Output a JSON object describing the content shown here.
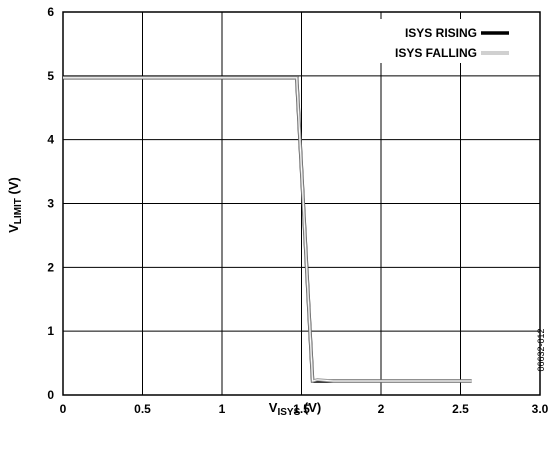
{
  "chart_data": {
    "type": "line",
    "xlim": [
      0,
      3.0
    ],
    "ylim": [
      0,
      6
    ],
    "x_ticks": [
      0,
      0.5,
      1,
      1.5,
      2,
      2.5,
      3.0
    ],
    "x_tick_labels": [
      "0",
      "0.5",
      "1",
      "1.5",
      "2",
      "2.5",
      "3.0"
    ],
    "y_ticks": [
      0,
      1,
      2,
      3,
      4,
      5,
      6
    ],
    "y_tick_labels": [
      "0",
      "1",
      "2",
      "3",
      "4",
      "5",
      "6"
    ],
    "grid": true,
    "xlabel": {
      "main": "V",
      "sub": "ISYS",
      "unit": " (V)"
    },
    "ylabel": {
      "main": "V",
      "sub": "LIMIT",
      "unit": " (V)"
    },
    "legend_position": "top-right",
    "series": [
      {
        "name": "ISYS RISING",
        "color": "#000000",
        "x": [
          0,
          1.47,
          1.57,
          2.57
        ],
        "y": [
          4.97,
          4.97,
          0.22,
          0.22
        ]
      },
      {
        "name": "ISYS FALLING",
        "color": "#a0a0a0",
        "x": [
          0,
          1.47,
          1.57,
          1.6,
          1.7,
          2.57
        ],
        "y": [
          4.97,
          4.97,
          0.22,
          0.24,
          0.22,
          0.22
        ]
      }
    ],
    "figure_id": "06632-012"
  }
}
